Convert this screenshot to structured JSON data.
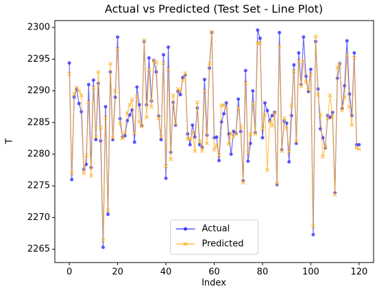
{
  "chart_data": {
    "type": "line",
    "title": "Actual vs Predicted (Test Set - Line Plot)",
    "xlabel": "Index",
    "ylabel": "T",
    "x": [
      0,
      1,
      2,
      3,
      4,
      5,
      6,
      7,
      8,
      9,
      10,
      11,
      12,
      13,
      14,
      15,
      16,
      17,
      18,
      19,
      20,
      21,
      22,
      23,
      24,
      25,
      26,
      27,
      28,
      29,
      30,
      31,
      32,
      33,
      34,
      35,
      36,
      37,
      38,
      39,
      40,
      41,
      42,
      43,
      44,
      45,
      46,
      47,
      48,
      49,
      50,
      51,
      52,
      53,
      54,
      55,
      56,
      57,
      58,
      59,
      60,
      61,
      62,
      63,
      64,
      65,
      66,
      67,
      68,
      69,
      70,
      71,
      72,
      73,
      74,
      75,
      76,
      77,
      78,
      79,
      80,
      81,
      82,
      83,
      84,
      85,
      86,
      87,
      88,
      89,
      90,
      91,
      92,
      93,
      94,
      95,
      96,
      97,
      98,
      99,
      100,
      101,
      102,
      103,
      104,
      105,
      106,
      107,
      108,
      109,
      110,
      111,
      112,
      113,
      114,
      115,
      116,
      117,
      118,
      119,
      120
    ],
    "series": [
      {
        "name": "Actual",
        "color": "#3333ff",
        "marker": "o",
        "values": [
          2294.4,
          2276,
          2289,
          2290.3,
          2288,
          2286.7,
          2277.6,
          2278.4,
          2291,
          2277.9,
          2291.7,
          2282.3,
          2291.2,
          2282.1,
          2265.3,
          2287.5,
          2270.5,
          2293,
          2282.3,
          2289,
          2298.5,
          2285.6,
          2282.7,
          2282.9,
          2285.3,
          2286.2,
          2287,
          2281.9,
          2290.6,
          2287.8,
          2284.5,
          2297.8,
          2287.8,
          2295.2,
          2288.4,
          2294.8,
          2293,
          2286,
          2282.3,
          2295.7,
          2276.2,
          2296.9,
          2280.3,
          2288.2,
          2284.6,
          2289.9,
          2289.4,
          2292.1,
          2292.5,
          2283.2,
          2281.5,
          2284.6,
          2282.7,
          2287.3,
          2281.5,
          2281.1,
          2291.8,
          2283,
          2293.6,
          2299.2,
          2282.6,
          2282.7,
          2279,
          2285.1,
          2286.4,
          2288.1,
          2283.2,
          2280,
          2283.6,
          2283.3,
          2288.7,
          2283.6,
          2275.8,
          2293.2,
          2278.9,
          2281.7,
          2290,
          2283.4,
          2299.6,
          2298.3,
          2282.6,
          2288.1,
          2286.9,
          2285.3,
          2286.1,
          2286.6,
          2275.2,
          2299.2,
          2280.7,
          2285.2,
          2284.9,
          2278.8,
          2286.1,
          2294.1,
          2281.7,
          2296,
          2291,
          2298.5,
          2292.3,
          2289.9,
          2293.4,
          2267.3,
          2297.8,
          2290.3,
          2284,
          2282.6,
          2281,
          2286.1,
          2285.8,
          2286.6,
          2273.9,
          2292,
          2294.3,
          2287.2,
          2290.8,
          2297.9,
          2289.5,
          2286.1,
          2296,
          2281.5,
          2281.5
        ]
      },
      {
        "name": "Predicted",
        "color": "#ffb020",
        "marker": "x",
        "values": [
          2292.7,
          2277,
          2289.5,
          2290.5,
          2290,
          2289.3,
          2277,
          2279.8,
          2288.2,
          2276.6,
          2290.5,
          2282.7,
          2293,
          2284.2,
          2266.4,
          2285.8,
          2271.1,
          2294.3,
          2282.6,
          2290,
          2296.6,
          2284.8,
          2282.5,
          2283.4,
          2286.5,
          2287.8,
          2288.6,
          2283.3,
          2289.2,
          2285.1,
          2284.4,
          2298,
          2285.8,
          2293.4,
          2287.5,
          2294.8,
          2294.5,
          2285.7,
          2282.7,
          2294.4,
          2278.1,
          2293.4,
          2279.2,
          2289.3,
          2284.8,
          2290.3,
          2290,
          2291.7,
          2292.8,
          2282.4,
          2282.4,
          2283.5,
          2280.5,
          2288.2,
          2282,
          2280.5,
          2290,
          2281.7,
          2294.3,
          2299.3,
          2280.7,
          2281.4,
          2279.8,
          2287.7,
          2287.8,
          2287.3,
          2281.6,
          2283.3,
          2282.7,
          2283.2,
          2287.3,
          2284.3,
          2275.5,
          2291.2,
          2280.2,
          2283.1,
          2288,
          2283.2,
          2297.5,
          2297.6,
          2284,
          2286.3,
          2277.5,
          2285.2,
          2284.5,
          2286.5,
          2275.4,
          2297,
          2280.5,
          2285.7,
          2284.1,
          2280.4,
          2287.7,
          2293.1,
          2282,
          2294.7,
          2290.7,
          2294.8,
          2291.4,
          2290.2,
          2292.6,
          2268.6,
          2298.6,
          2289.4,
          2286.2,
          2279.6,
          2281.2,
          2285.7,
          2289.3,
          2285.9,
          2273.6,
          2293.7,
          2294.3,
          2286.9,
          2289,
          2295.6,
          2287.5,
          2284.6,
          2295.2,
          2281,
          2280.8
        ]
      }
    ],
    "xlim": [
      -6,
      126
    ],
    "ylim": [
      2262.9,
      2301.1
    ],
    "xticks": [
      0,
      20,
      40,
      60,
      80,
      100,
      120
    ],
    "yticks": [
      2265,
      2270,
      2275,
      2280,
      2285,
      2290,
      2295,
      2300
    ],
    "grid": false,
    "legend": "lower center"
  }
}
